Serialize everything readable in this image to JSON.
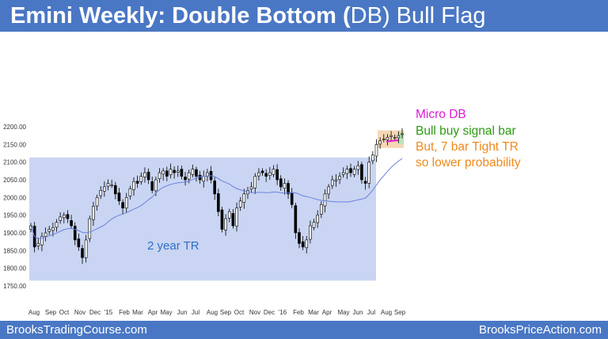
{
  "header": {
    "title_part1": "Emini Weekly: Double Bottom (",
    "title_part2": "DB",
    "title_part3": ") Bull Flag"
  },
  "footer": {
    "left": "BrooksTradingCourse.com",
    "right": "BrooksPriceAction.com"
  },
  "annotations": {
    "micro_db": "Micro DB",
    "bull_bar": "Bull buy signal bar",
    "tight_tr_1": "But, 7 bar Tight TR",
    "tight_tr_2": "so lower probability",
    "range_label": "2 year TR"
  },
  "colors": {
    "header": "#4a77c4",
    "range_fill": "#c9d5f2",
    "flag_fill": "#f6d7b5",
    "magenta": "#e01ad4",
    "green": "#2b9a10",
    "orange": "#ef8a1c",
    "blue_text": "#2f6fc9",
    "ma": "#6b82e0"
  },
  "chart_data": {
    "type": "candlestick",
    "title": "",
    "ylim": [
      1740,
      2260
    ],
    "yticks": [
      "1750.00",
      "1800.00",
      "1850.00",
      "1900.00",
      "1950.00",
      "2000.00",
      "2050.00",
      "2100.00",
      "2150.00",
      "2200.00"
    ],
    "ytick_values": [
      1750,
      1800,
      1850,
      1900,
      1950,
      2000,
      2050,
      2100,
      2150,
      2200
    ],
    "xticks": [
      "Aug",
      "Sep",
      "Oct",
      "Nov",
      "Dec",
      "'15",
      "Feb",
      "Mar",
      "Apr",
      "May",
      "Jun",
      "Jul",
      "Aug",
      "Sep",
      "Oct",
      "Nov",
      "Dec",
      "'16",
      "Feb",
      "Mar",
      "Apr",
      "May",
      "Jun",
      "Jul",
      "Aug",
      "Sep"
    ],
    "closes": [
      1920,
      1860,
      1870,
      1890,
      1900,
      1910,
      1915,
      1930,
      1945,
      1950,
      1940,
      1920,
      1880,
      1860,
      1830,
      1880,
      1940,
      1975,
      2000,
      2020,
      2030,
      2040,
      2035,
      2010,
      1990,
      1970,
      2000,
      2025,
      2045,
      2040,
      2060,
      2070,
      2050,
      2020,
      2050,
      2070,
      2075,
      2060,
      2080,
      2070,
      2075,
      2060,
      2050,
      2070,
      2080,
      2060,
      2050,
      2060,
      2070,
      2050,
      2010,
      1960,
      1910,
      1940,
      1960,
      1920,
      1970,
      1990,
      2010,
      2020,
      2030,
      2060,
      2070,
      2070,
      2060,
      2070,
      2080,
      2050,
      2030,
      2040,
      2010,
      1980,
      1900,
      1870,
      1860,
      1880,
      1920,
      1930,
      1950,
      1980,
      2010,
      2030,
      2050,
      2050,
      2060,
      2070,
      2080,
      2070,
      2080,
      2090,
      2050,
      2040,
      2100,
      2120,
      2150,
      2160,
      2165,
      2170,
      2175,
      2170,
      2175,
      2180
    ]
  }
}
